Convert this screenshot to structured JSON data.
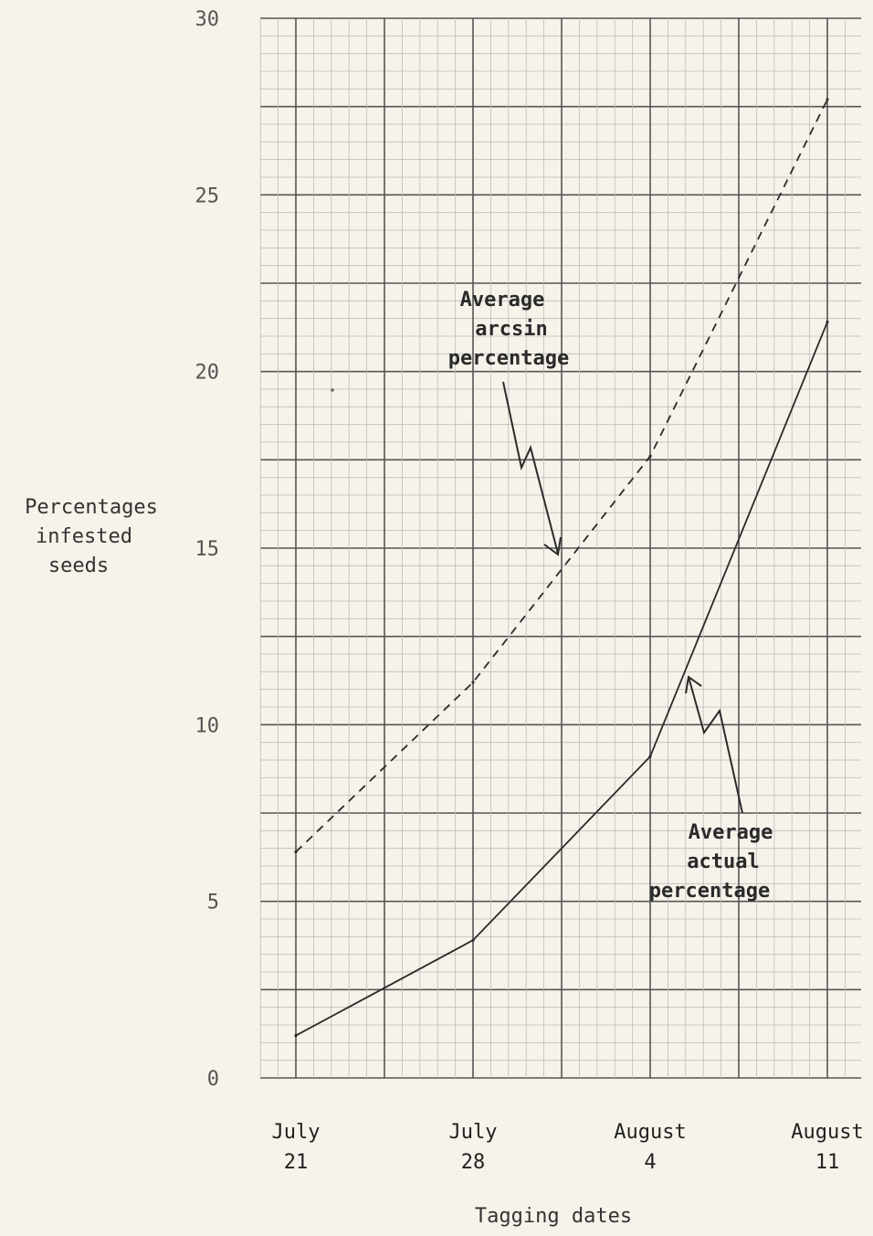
{
  "chart_data": {
    "type": "line",
    "ylabel_lines": [
      "Percentages",
      "infested",
      "seeds"
    ],
    "xlabel": "Tagging dates",
    "categories": [
      {
        "line1": "July",
        "line2": "21"
      },
      {
        "line1": "July",
        "line2": "28"
      },
      {
        "line1": "August",
        "line2": "4"
      },
      {
        "line1": "August",
        "line2": "11"
      }
    ],
    "ylim": [
      0,
      30
    ],
    "yticks": [
      0,
      5,
      10,
      15,
      20,
      25,
      30
    ],
    "grid": true,
    "series": [
      {
        "name": "Average arcsin percentage",
        "label_lines": [
          "Average",
          "arcsin",
          "percentage"
        ],
        "style": "dashed",
        "values": [
          6.4,
          11.2,
          17.6,
          27.7
        ]
      },
      {
        "name": "Average actual percentage",
        "label_lines": [
          "Average",
          "actual",
          "percentage"
        ],
        "style": "solid",
        "values": [
          1.2,
          3.9,
          9.1,
          21.4
        ]
      }
    ],
    "colors": {
      "line": "#2b2b2b",
      "grid_major": "#555555",
      "grid_minor": "#bdbdbd",
      "paper": "#f7f3ea"
    }
  }
}
